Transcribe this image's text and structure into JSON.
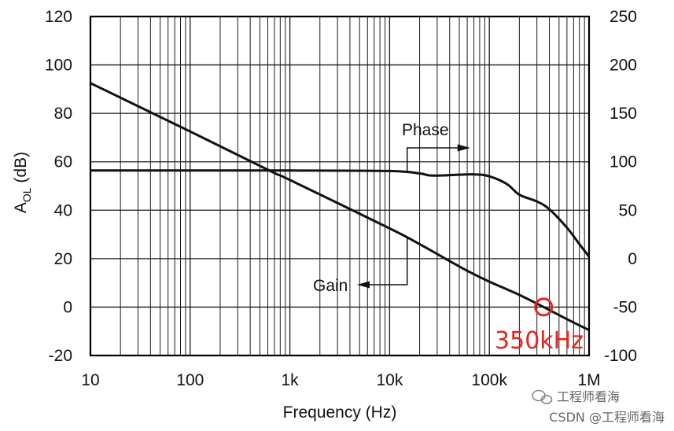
{
  "chart_data": {
    "type": "line",
    "xlabel": "Frequency (Hz)",
    "ylabel_left_main": "A",
    "ylabel_left_sub": "OL",
    "ylabel_left_unit": " (dB)",
    "x_scale": "log",
    "xlim": [
      10,
      1000000
    ],
    "x_ticks": [
      10,
      100,
      1000,
      10000,
      100000,
      1000000
    ],
    "x_tick_labels": [
      "10",
      "100",
      "1k",
      "10k",
      "100k",
      "1M"
    ],
    "ylim_left": [
      -20,
      120
    ],
    "y_left_ticks": [
      -20,
      0,
      20,
      40,
      60,
      80,
      100,
      120
    ],
    "ylim_right": [
      -100,
      250
    ],
    "y_right_ticks": [
      -100,
      -50,
      0,
      50,
      100,
      150,
      200,
      250
    ],
    "grid": true,
    "series": [
      {
        "name": "Gain",
        "axis": "left",
        "color": "#111111",
        "x": [
          10,
          100,
          650,
          1000,
          10000,
          20000,
          40000,
          60000,
          100000,
          200000,
          350000,
          600000,
          1000000
        ],
        "y": [
          92.5,
          72.5,
          56,
          52.5,
          32.5,
          26,
          19,
          15,
          10.5,
          5,
          0,
          -5,
          -9.5
        ]
      },
      {
        "name": "Phase",
        "axis": "right",
        "color": "#111111",
        "x": [
          10,
          100,
          1000,
          10000,
          20000,
          25000,
          35000,
          70000,
          100000,
          150000,
          200000,
          300000,
          400000,
          600000,
          800000,
          1000000
        ],
        "y": [
          91,
          91,
          91,
          90.5,
          88,
          86,
          86,
          87,
          85,
          77,
          66,
          59,
          51,
          32,
          15,
          2
        ]
      }
    ],
    "annotations": [
      {
        "text": "Phase",
        "series": "Phase",
        "arrow": "right"
      },
      {
        "text": "Gain",
        "series": "Gain",
        "arrow": "left"
      }
    ],
    "marker": {
      "x": 350000,
      "y": 0,
      "label": "350kHz",
      "color": "#e8221c"
    }
  },
  "watermark": {
    "line1": "工程师看海",
    "line2": "CSDN @工程师看海"
  }
}
